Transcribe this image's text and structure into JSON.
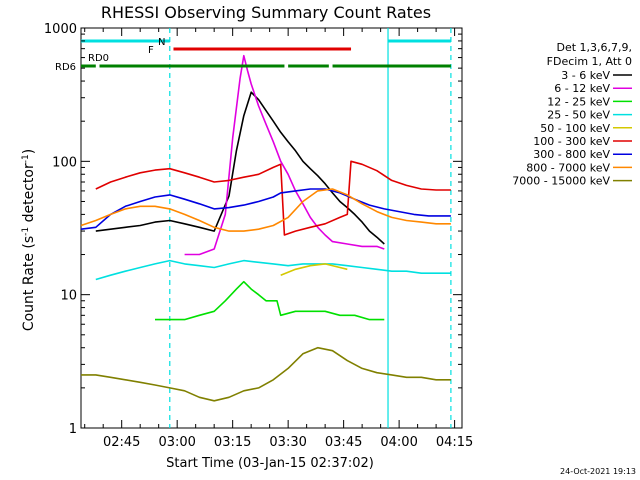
{
  "chart_data": {
    "type": "line",
    "title": "RHESSI Observing Summary Count Rates",
    "xlabel": "Start Time (03-Jan-15 02:37:02)",
    "ylabel_main": "Count Rate (s",
    "ylabel_sup": "-1",
    "ylabel_tail": " detector",
    "ylabel_end": ")",
    "yscale": "log",
    "ylim": [
      1,
      1000
    ],
    "y_ticks": [
      {
        "value": 1,
        "label": "1"
      },
      {
        "value": 10,
        "label": "10"
      },
      {
        "value": 100,
        "label": "100"
      },
      {
        "value": 1000,
        "label": "1000"
      }
    ],
    "xlim_minutes": [
      154,
      257
    ],
    "x_ticks": [
      {
        "minute": 165,
        "label": "02:45"
      },
      {
        "minute": 180,
        "label": "03:00"
      },
      {
        "minute": 195,
        "label": "03:15"
      },
      {
        "minute": 210,
        "label": "03:30"
      },
      {
        "minute": 225,
        "label": "03:45"
      },
      {
        "minute": 240,
        "label": "04:00"
      },
      {
        "minute": 255,
        "label": "04:15"
      }
    ],
    "legend_header": [
      "Det 1,3,6,7,9,",
      "FDecim 1, Att 0"
    ],
    "legend_position": "right",
    "flags": [
      {
        "label": "N",
        "color": "#00e0e0",
        "segments": [
          [
            154,
            178
          ],
          [
            237,
            254
          ]
        ]
      },
      {
        "label": "F",
        "color": "#e00000",
        "segments": [
          [
            179,
            227
          ]
        ]
      },
      {
        "label": "RD0",
        "color": "#000000",
        "segments": []
      },
      {
        "label": "RD6",
        "color": "#008000",
        "segments": [
          [
            154,
            158
          ],
          [
            159,
            209
          ],
          [
            210,
            221
          ],
          [
            222,
            254
          ]
        ]
      }
    ],
    "vlines": [
      {
        "minute": 178,
        "color": "#00e0e0",
        "style": "dashed"
      },
      {
        "minute": 237,
        "color": "#00e0e0",
        "style": "solid"
      },
      {
        "minute": 254,
        "color": "#00e0e0",
        "style": "dashed"
      }
    ],
    "series": [
      {
        "name": "3 - 6 keV",
        "color": "#000000",
        "points": [
          [
            158,
            30
          ],
          [
            162,
            31
          ],
          [
            166,
            32
          ],
          [
            170,
            33
          ],
          [
            174,
            35
          ],
          [
            178,
            36
          ],
          [
            182,
            34
          ],
          [
            186,
            32
          ],
          [
            190,
            30
          ],
          [
            194,
            55
          ],
          [
            196,
            120
          ],
          [
            198,
            220
          ],
          [
            200,
            330
          ],
          [
            202,
            290
          ],
          [
            204,
            240
          ],
          [
            206,
            200
          ],
          [
            208,
            165
          ],
          [
            210,
            140
          ],
          [
            212,
            120
          ],
          [
            214,
            100
          ],
          [
            216,
            88
          ],
          [
            218,
            78
          ],
          [
            220,
            68
          ],
          [
            222,
            58
          ],
          [
            224,
            50
          ],
          [
            226,
            45
          ],
          [
            228,
            40
          ],
          [
            230,
            35
          ],
          [
            232,
            30
          ],
          [
            234,
            27
          ],
          [
            236,
            24
          ]
        ]
      },
      {
        "name": "6 - 12 keV",
        "color": "#e000e0",
        "points": [
          [
            182,
            20
          ],
          [
            186,
            20
          ],
          [
            190,
            22
          ],
          [
            193,
            40
          ],
          [
            195,
            150
          ],
          [
            197,
            420
          ],
          [
            198,
            620
          ],
          [
            199,
            480
          ],
          [
            200,
            380
          ],
          [
            202,
            260
          ],
          [
            204,
            190
          ],
          [
            206,
            140
          ],
          [
            208,
            100
          ],
          [
            210,
            80
          ],
          [
            212,
            60
          ],
          [
            214,
            48
          ],
          [
            216,
            38
          ],
          [
            218,
            32
          ],
          [
            220,
            28
          ],
          [
            222,
            25
          ],
          [
            226,
            24
          ],
          [
            230,
            23
          ],
          [
            234,
            23
          ],
          [
            236,
            22
          ]
        ]
      },
      {
        "name": "12 - 25 keV",
        "color": "#00e000",
        "points": [
          [
            174,
            6.5
          ],
          [
            178,
            6.5
          ],
          [
            182,
            6.5
          ],
          [
            186,
            7
          ],
          [
            190,
            7.5
          ],
          [
            193,
            9
          ],
          [
            196,
            11
          ],
          [
            198,
            12.5
          ],
          [
            200,
            11
          ],
          [
            202,
            10
          ],
          [
            204,
            9
          ],
          [
            207,
            9
          ],
          [
            208,
            7
          ],
          [
            212,
            7.5
          ],
          [
            216,
            7.5
          ],
          [
            220,
            7.5
          ],
          [
            224,
            7
          ],
          [
            228,
            7
          ],
          [
            232,
            6.5
          ],
          [
            236,
            6.5
          ]
        ]
      },
      {
        "name": "25 - 50 keV",
        "color": "#00e0e0",
        "points": [
          [
            158,
            13
          ],
          [
            162,
            14
          ],
          [
            166,
            15
          ],
          [
            170,
            16
          ],
          [
            174,
            17
          ],
          [
            178,
            18
          ],
          [
            182,
            17
          ],
          [
            186,
            16.5
          ],
          [
            190,
            16
          ],
          [
            194,
            17
          ],
          [
            198,
            18
          ],
          [
            202,
            17.5
          ],
          [
            206,
            17
          ],
          [
            210,
            16.5
          ],
          [
            214,
            17
          ],
          [
            218,
            17
          ],
          [
            222,
            17
          ],
          [
            226,
            16.5
          ],
          [
            230,
            16
          ],
          [
            234,
            15.5
          ],
          [
            238,
            15
          ],
          [
            242,
            15
          ],
          [
            246,
            14.5
          ],
          [
            250,
            14.5
          ],
          [
            254,
            14.5
          ]
        ]
      },
      {
        "name": "50 - 100 keV",
        "color": "#d4c800",
        "points": [
          [
            208,
            14
          ],
          [
            212,
            15.5
          ],
          [
            216,
            16.5
          ],
          [
            220,
            17
          ],
          [
            224,
            16
          ],
          [
            226,
            15.5
          ]
        ]
      },
      {
        "name": "100 - 300 keV",
        "color": "#e00000",
        "points": [
          [
            158,
            62
          ],
          [
            162,
            70
          ],
          [
            166,
            76
          ],
          [
            170,
            82
          ],
          [
            174,
            86
          ],
          [
            178,
            88
          ],
          [
            182,
            82
          ],
          [
            186,
            76
          ],
          [
            190,
            70
          ],
          [
            194,
            72
          ],
          [
            198,
            76
          ],
          [
            202,
            80
          ],
          [
            206,
            90
          ],
          [
            208,
            95
          ],
          [
            209,
            28
          ],
          [
            212,
            30
          ],
          [
            216,
            32
          ],
          [
            220,
            34
          ],
          [
            224,
            38
          ],
          [
            226,
            40
          ],
          [
            227,
            100
          ],
          [
            230,
            95
          ],
          [
            234,
            85
          ],
          [
            238,
            72
          ],
          [
            242,
            66
          ],
          [
            246,
            62
          ],
          [
            250,
            61
          ],
          [
            254,
            61
          ]
        ]
      },
      {
        "name": "300 - 800 keV",
        "color": "#0000e0",
        "points": [
          [
            154,
            31
          ],
          [
            158,
            32
          ],
          [
            162,
            40
          ],
          [
            166,
            46
          ],
          [
            170,
            50
          ],
          [
            174,
            54
          ],
          [
            178,
            56
          ],
          [
            182,
            52
          ],
          [
            186,
            48
          ],
          [
            190,
            44
          ],
          [
            194,
            45
          ],
          [
            198,
            47
          ],
          [
            202,
            50
          ],
          [
            206,
            54
          ],
          [
            208,
            58
          ],
          [
            212,
            60
          ],
          [
            216,
            62
          ],
          [
            220,
            62
          ],
          [
            224,
            58
          ],
          [
            228,
            52
          ],
          [
            232,
            47
          ],
          [
            236,
            44
          ],
          [
            240,
            42
          ],
          [
            244,
            40
          ],
          [
            248,
            39
          ],
          [
            252,
            39
          ],
          [
            254,
            39
          ]
        ]
      },
      {
        "name": "800 - 7000 keV",
        "color": "#ff8800",
        "points": [
          [
            154,
            33
          ],
          [
            158,
            36
          ],
          [
            162,
            40
          ],
          [
            166,
            44
          ],
          [
            170,
            46
          ],
          [
            174,
            46
          ],
          [
            178,
            44
          ],
          [
            182,
            40
          ],
          [
            186,
            36
          ],
          [
            190,
            32
          ],
          [
            194,
            30
          ],
          [
            198,
            30
          ],
          [
            202,
            31
          ],
          [
            206,
            33
          ],
          [
            210,
            38
          ],
          [
            214,
            50
          ],
          [
            218,
            60
          ],
          [
            222,
            62
          ],
          [
            226,
            56
          ],
          [
            230,
            48
          ],
          [
            234,
            42
          ],
          [
            238,
            38
          ],
          [
            242,
            36
          ],
          [
            246,
            35
          ],
          [
            250,
            34
          ],
          [
            254,
            34
          ]
        ]
      },
      {
        "name": "7000 - 15000 keV",
        "color": "#808000",
        "points": [
          [
            154,
            2.5
          ],
          [
            158,
            2.5
          ],
          [
            162,
            2.4
          ],
          [
            166,
            2.3
          ],
          [
            170,
            2.2
          ],
          [
            174,
            2.1
          ],
          [
            178,
            2.0
          ],
          [
            182,
            1.9
          ],
          [
            186,
            1.7
          ],
          [
            190,
            1.6
          ],
          [
            194,
            1.7
          ],
          [
            198,
            1.9
          ],
          [
            202,
            2.0
          ],
          [
            206,
            2.3
          ],
          [
            210,
            2.8
          ],
          [
            214,
            3.6
          ],
          [
            218,
            4.0
          ],
          [
            222,
            3.8
          ],
          [
            226,
            3.2
          ],
          [
            230,
            2.8
          ],
          [
            234,
            2.6
          ],
          [
            238,
            2.5
          ],
          [
            242,
            2.4
          ],
          [
            246,
            2.4
          ],
          [
            250,
            2.3
          ],
          [
            254,
            2.3
          ]
        ]
      }
    ]
  },
  "footer": {
    "timestamp": "24-Oct-2021 19:13"
  }
}
